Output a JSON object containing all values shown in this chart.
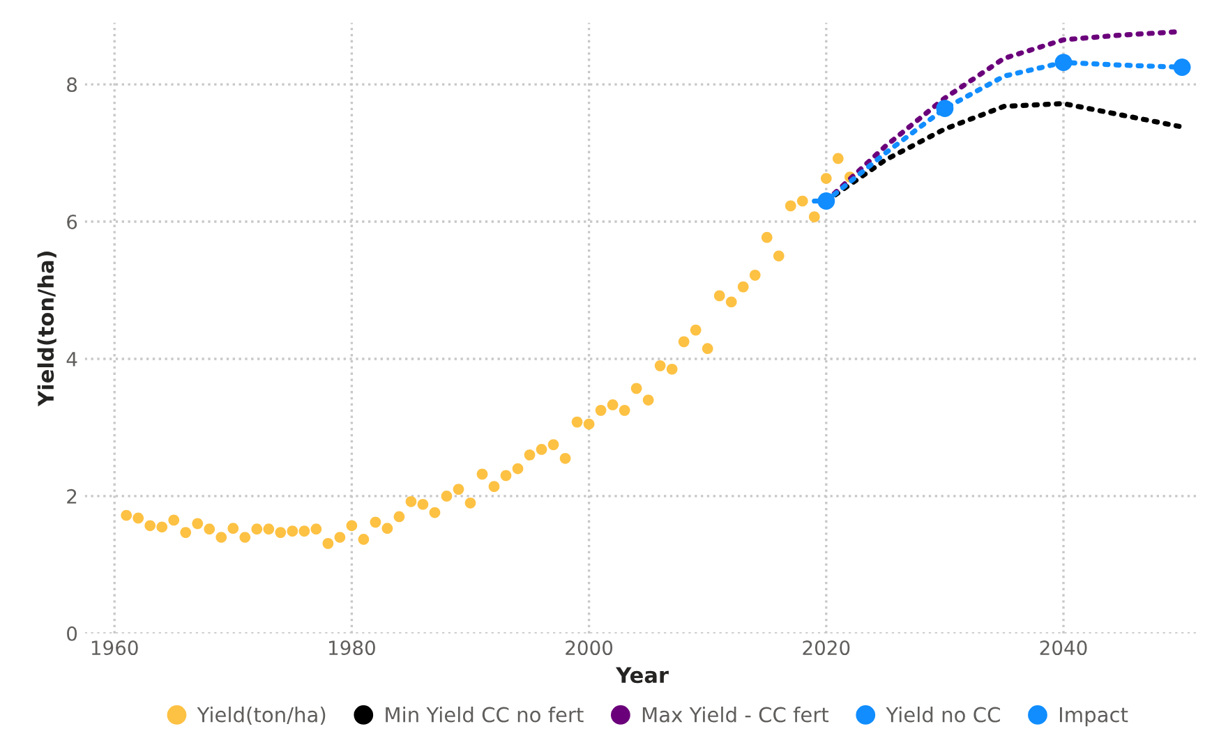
{
  "chart_data": {
    "type": "scatter",
    "xlabel": "Year",
    "ylabel": "Yield(ton/ha)",
    "xlim": [
      1957.5,
      2051.5
    ],
    "xticks": [
      1960,
      1980,
      2000,
      2020,
      2040
    ],
    "ylim": [
      0,
      8.9
    ],
    "yticks": [
      0,
      2,
      4,
      6,
      8
    ],
    "grid": true,
    "legend": "bottom",
    "series": [
      {
        "name": "Yield(ton/ha)",
        "marker": "circle",
        "color": "#fdc143",
        "x": [
          1961,
          1962,
          1963,
          1964,
          1965,
          1966,
          1967,
          1968,
          1969,
          1970,
          1971,
          1972,
          1973,
          1974,
          1975,
          1976,
          1977,
          1978,
          1979,
          1980,
          1981,
          1982,
          1983,
          1984,
          1985,
          1986,
          1987,
          1988,
          1989,
          1990,
          1991,
          1992,
          1993,
          1994,
          1995,
          1996,
          1997,
          1998,
          1999,
          2000,
          2001,
          2002,
          2003,
          2004,
          2005,
          2006,
          2007,
          2008,
          2009,
          2010,
          2011,
          2012,
          2013,
          2014,
          2015,
          2016,
          2017,
          2018,
          2019,
          2020,
          2021,
          2022
        ],
        "values": [
          1.72,
          1.68,
          1.57,
          1.55,
          1.65,
          1.47,
          1.6,
          1.52,
          1.4,
          1.53,
          1.4,
          1.52,
          1.52,
          1.47,
          1.49,
          1.49,
          1.52,
          1.31,
          1.4,
          1.57,
          1.37,
          1.62,
          1.53,
          1.7,
          1.92,
          1.88,
          1.76,
          2.0,
          2.1,
          1.9,
          2.32,
          2.14,
          2.3,
          2.4,
          2.6,
          2.68,
          2.75,
          2.55,
          3.08,
          3.05,
          3.25,
          3.33,
          3.25,
          3.57,
          3.4,
          3.9,
          3.85,
          4.25,
          4.42,
          4.15,
          4.92,
          4.83,
          5.05,
          5.22,
          5.77,
          5.5,
          6.23,
          6.3,
          6.07,
          6.63,
          6.92,
          6.65
        ]
      },
      {
        "name": "Min Yield CC no fert",
        "type": "line",
        "line_style": "dotted",
        "color": "#000000",
        "x": [
          2020,
          2025,
          2030,
          2035,
          2040,
          2045,
          2050
        ],
        "values": [
          6.3,
          6.9,
          7.35,
          7.68,
          7.72,
          7.55,
          7.38
        ]
      },
      {
        "name": "Max Yield - CC fert",
        "type": "line",
        "line_style": "dotted",
        "color": "#6b007b",
        "x": [
          2020,
          2025,
          2030,
          2035,
          2040,
          2045,
          2050
        ],
        "values": [
          6.3,
          7.1,
          7.8,
          8.38,
          8.65,
          8.72,
          8.77
        ]
      },
      {
        "name": "Yield no CC",
        "type": "line",
        "line_style": "dotted",
        "color": "#118dff",
        "x": [
          2019,
          2020,
          2025,
          2030,
          2035,
          2040,
          2045,
          2050
        ],
        "values": [
          6.3,
          6.3,
          7.0,
          7.65,
          8.12,
          8.32,
          8.28,
          8.25
        ]
      },
      {
        "name": "Impact",
        "marker": "circle",
        "color": "#118dff",
        "x": [
          2020,
          2030,
          2040,
          2050
        ],
        "values": [
          6.3,
          7.65,
          8.32,
          8.25
        ]
      }
    ]
  }
}
